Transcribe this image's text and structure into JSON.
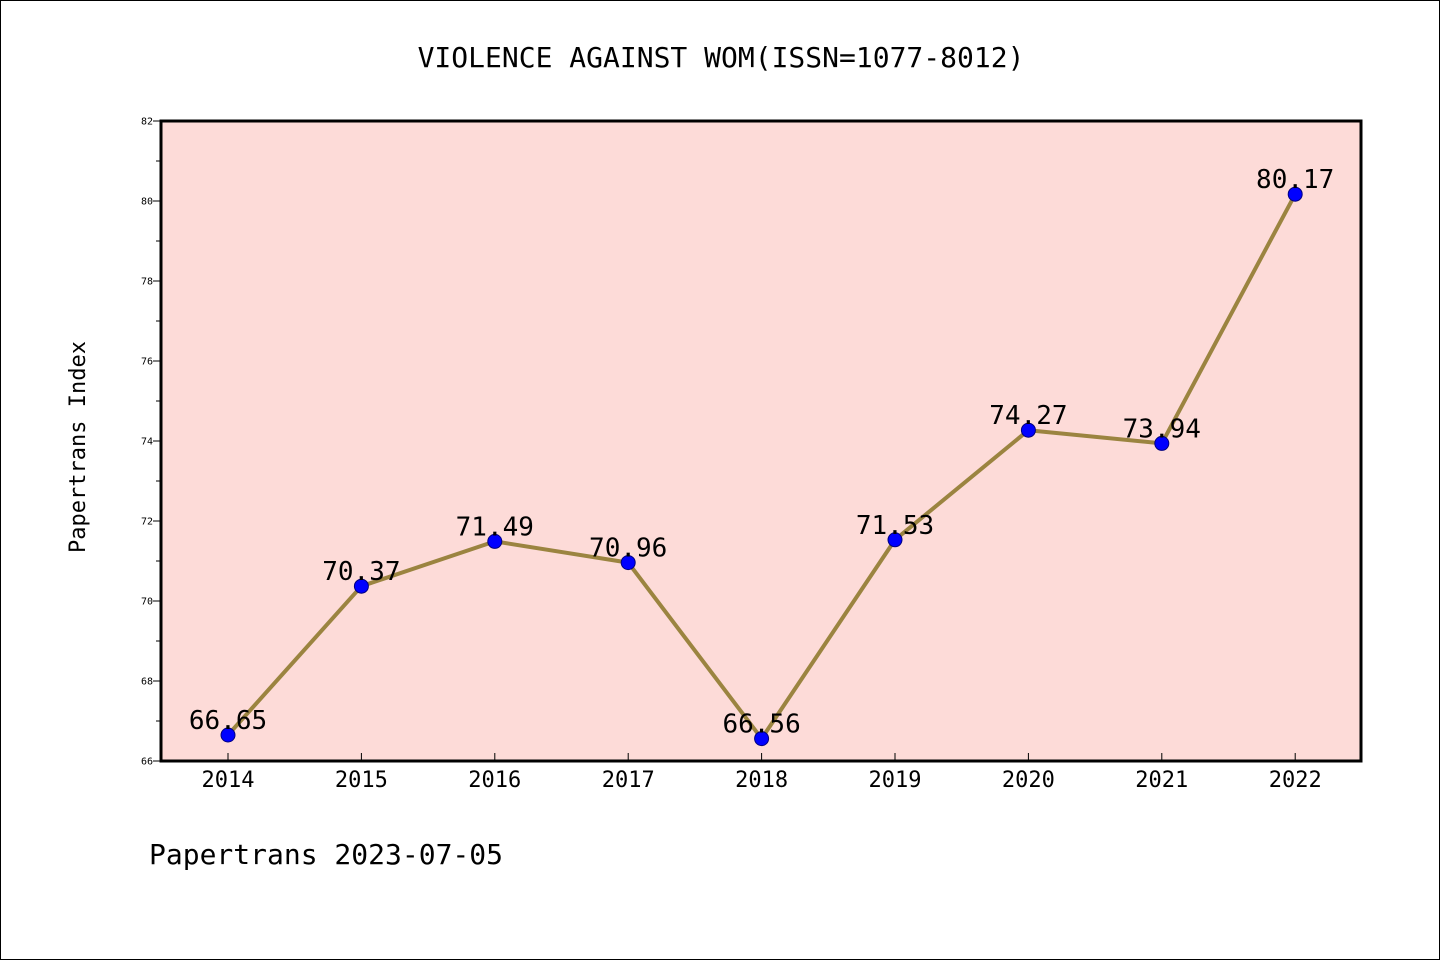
{
  "chart_data": {
    "type": "line",
    "title": "VIOLENCE AGAINST WOM(ISSN=1077-8012)",
    "xlabel": "",
    "ylabel": "Papertrans Index",
    "categories": [
      "2014",
      "2015",
      "2016",
      "2017",
      "2018",
      "2019",
      "2020",
      "2021",
      "2022"
    ],
    "series": [
      {
        "values": [
          66.65,
          70.37,
          71.49,
          70.96,
          66.56,
          71.53,
          74.27,
          73.94,
          80.17
        ],
        "labels": [
          "66.65",
          "70.37",
          "71.49",
          "70.96",
          "66.56",
          "71.53",
          "74.27",
          "73.94",
          "80.17"
        ]
      }
    ],
    "ylim": [
      66,
      82
    ],
    "yticks": [
      "66",
      "68",
      "70",
      "72",
      "74",
      "76",
      "78",
      "80",
      "82"
    ],
    "grid": false,
    "legend": "none",
    "footer": "Papertrans 2023-07-05"
  },
  "colors": {
    "plot_background": "#fddbd8",
    "line": "#9b8440",
    "marker": "#0000ff",
    "marker_edge": "#000080",
    "axes": "#000000"
  }
}
